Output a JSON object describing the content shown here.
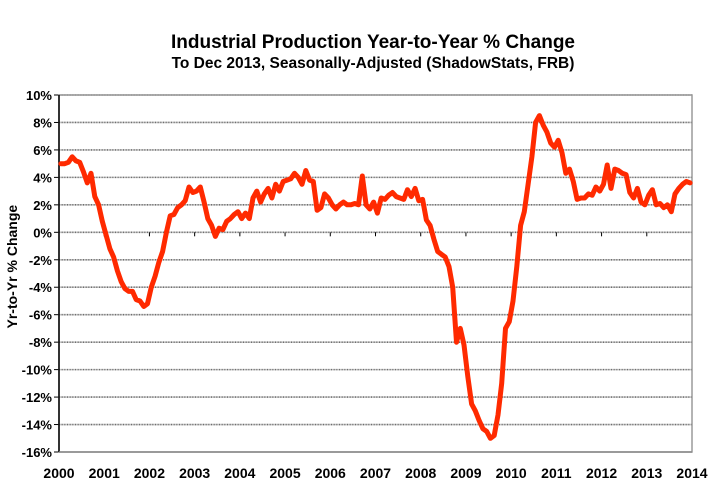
{
  "chart_data": {
    "type": "line",
    "title": "Industrial Production Year-to-Year % Change",
    "subtitle": "To Dec 2013, Seasonally-Adjusted (ShadowStats, FRB)",
    "xlabel": "",
    "ylabel": "Yr-to-Yr % Change",
    "xlim": [
      2000,
      2014
    ],
    "ylim": [
      -16,
      10
    ],
    "grid": true,
    "legend": "none",
    "x_ticks": [
      "2000",
      "2001",
      "2002",
      "2003",
      "2004",
      "2005",
      "2006",
      "2007",
      "2008",
      "2009",
      "2010",
      "2011",
      "2012",
      "2013",
      "2014"
    ],
    "y_ticks": [
      "10%",
      "8%",
      "6%",
      "4%",
      "2%",
      "0%",
      "-2%",
      "-4%",
      "-6%",
      "-8%",
      "-10%",
      "-12%",
      "-14%",
      "-16%"
    ],
    "y_tick_values": [
      10,
      8,
      6,
      4,
      2,
      0,
      -2,
      -4,
      -6,
      -8,
      -10,
      -12,
      -14,
      -16
    ],
    "series": [
      {
        "name": "Industrial Production Yr-to-Yr % Change",
        "color": "#ff2a00",
        "start": "2000-01",
        "frequency": "monthly",
        "values": [
          5.0,
          5.0,
          5.1,
          5.5,
          5.2,
          5.1,
          4.4,
          3.6,
          4.3,
          2.6,
          2.0,
          0.8,
          -0.2,
          -1.2,
          -1.8,
          -2.8,
          -3.6,
          -4.1,
          -4.3,
          -4.3,
          -4.9,
          -5.0,
          -5.4,
          -5.2,
          -4.0,
          -3.2,
          -2.2,
          -1.4,
          0.0,
          1.2,
          1.3,
          1.8,
          2.0,
          2.3,
          3.3,
          2.9,
          3.0,
          3.3,
          2.2,
          1.0,
          0.5,
          -0.3,
          0.3,
          0.2,
          0.8,
          1.0,
          1.3,
          1.5,
          1.0,
          1.4,
          1.0,
          2.5,
          3.0,
          2.2,
          2.8,
          3.2,
          2.5,
          3.5,
          3.0,
          3.7,
          3.8,
          3.9,
          4.3,
          4.0,
          3.5,
          4.5,
          3.8,
          3.7,
          1.6,
          1.8,
          2.8,
          2.5,
          2.0,
          1.7,
          2.0,
          2.2,
          2.0,
          2.0,
          2.1,
          2.0,
          4.1,
          2.0,
          1.7,
          2.2,
          1.4,
          2.5,
          2.4,
          2.7,
          2.9,
          2.6,
          2.5,
          2.4,
          3.1,
          2.6,
          3.2,
          2.3,
          2.4,
          0.9,
          0.5,
          -0.5,
          -1.4,
          -1.6,
          -1.8,
          -2.5,
          -4.0,
          -8.0,
          -7.0,
          -8.2,
          -10.5,
          -12.5,
          -13.0,
          -13.7,
          -14.3,
          -14.5,
          -15.0,
          -14.8,
          -13.3,
          -11.0,
          -7.0,
          -6.5,
          -5.0,
          -2.5,
          0.5,
          1.5,
          3.5,
          5.5,
          8.0,
          8.5,
          7.8,
          7.3,
          6.5,
          6.2,
          6.7,
          5.8,
          4.3,
          4.6,
          3.7,
          2.4,
          2.5,
          2.5,
          2.8,
          2.7,
          3.3,
          3.0,
          3.5,
          4.9,
          3.2,
          4.6,
          4.5,
          4.3,
          4.2,
          2.9,
          2.5,
          3.2,
          2.2,
          2.0,
          2.7,
          3.1,
          2.0,
          2.1,
          1.8,
          2.0,
          1.5,
          2.8,
          3.2,
          3.5,
          3.7,
          3.6
        ]
      }
    ]
  }
}
